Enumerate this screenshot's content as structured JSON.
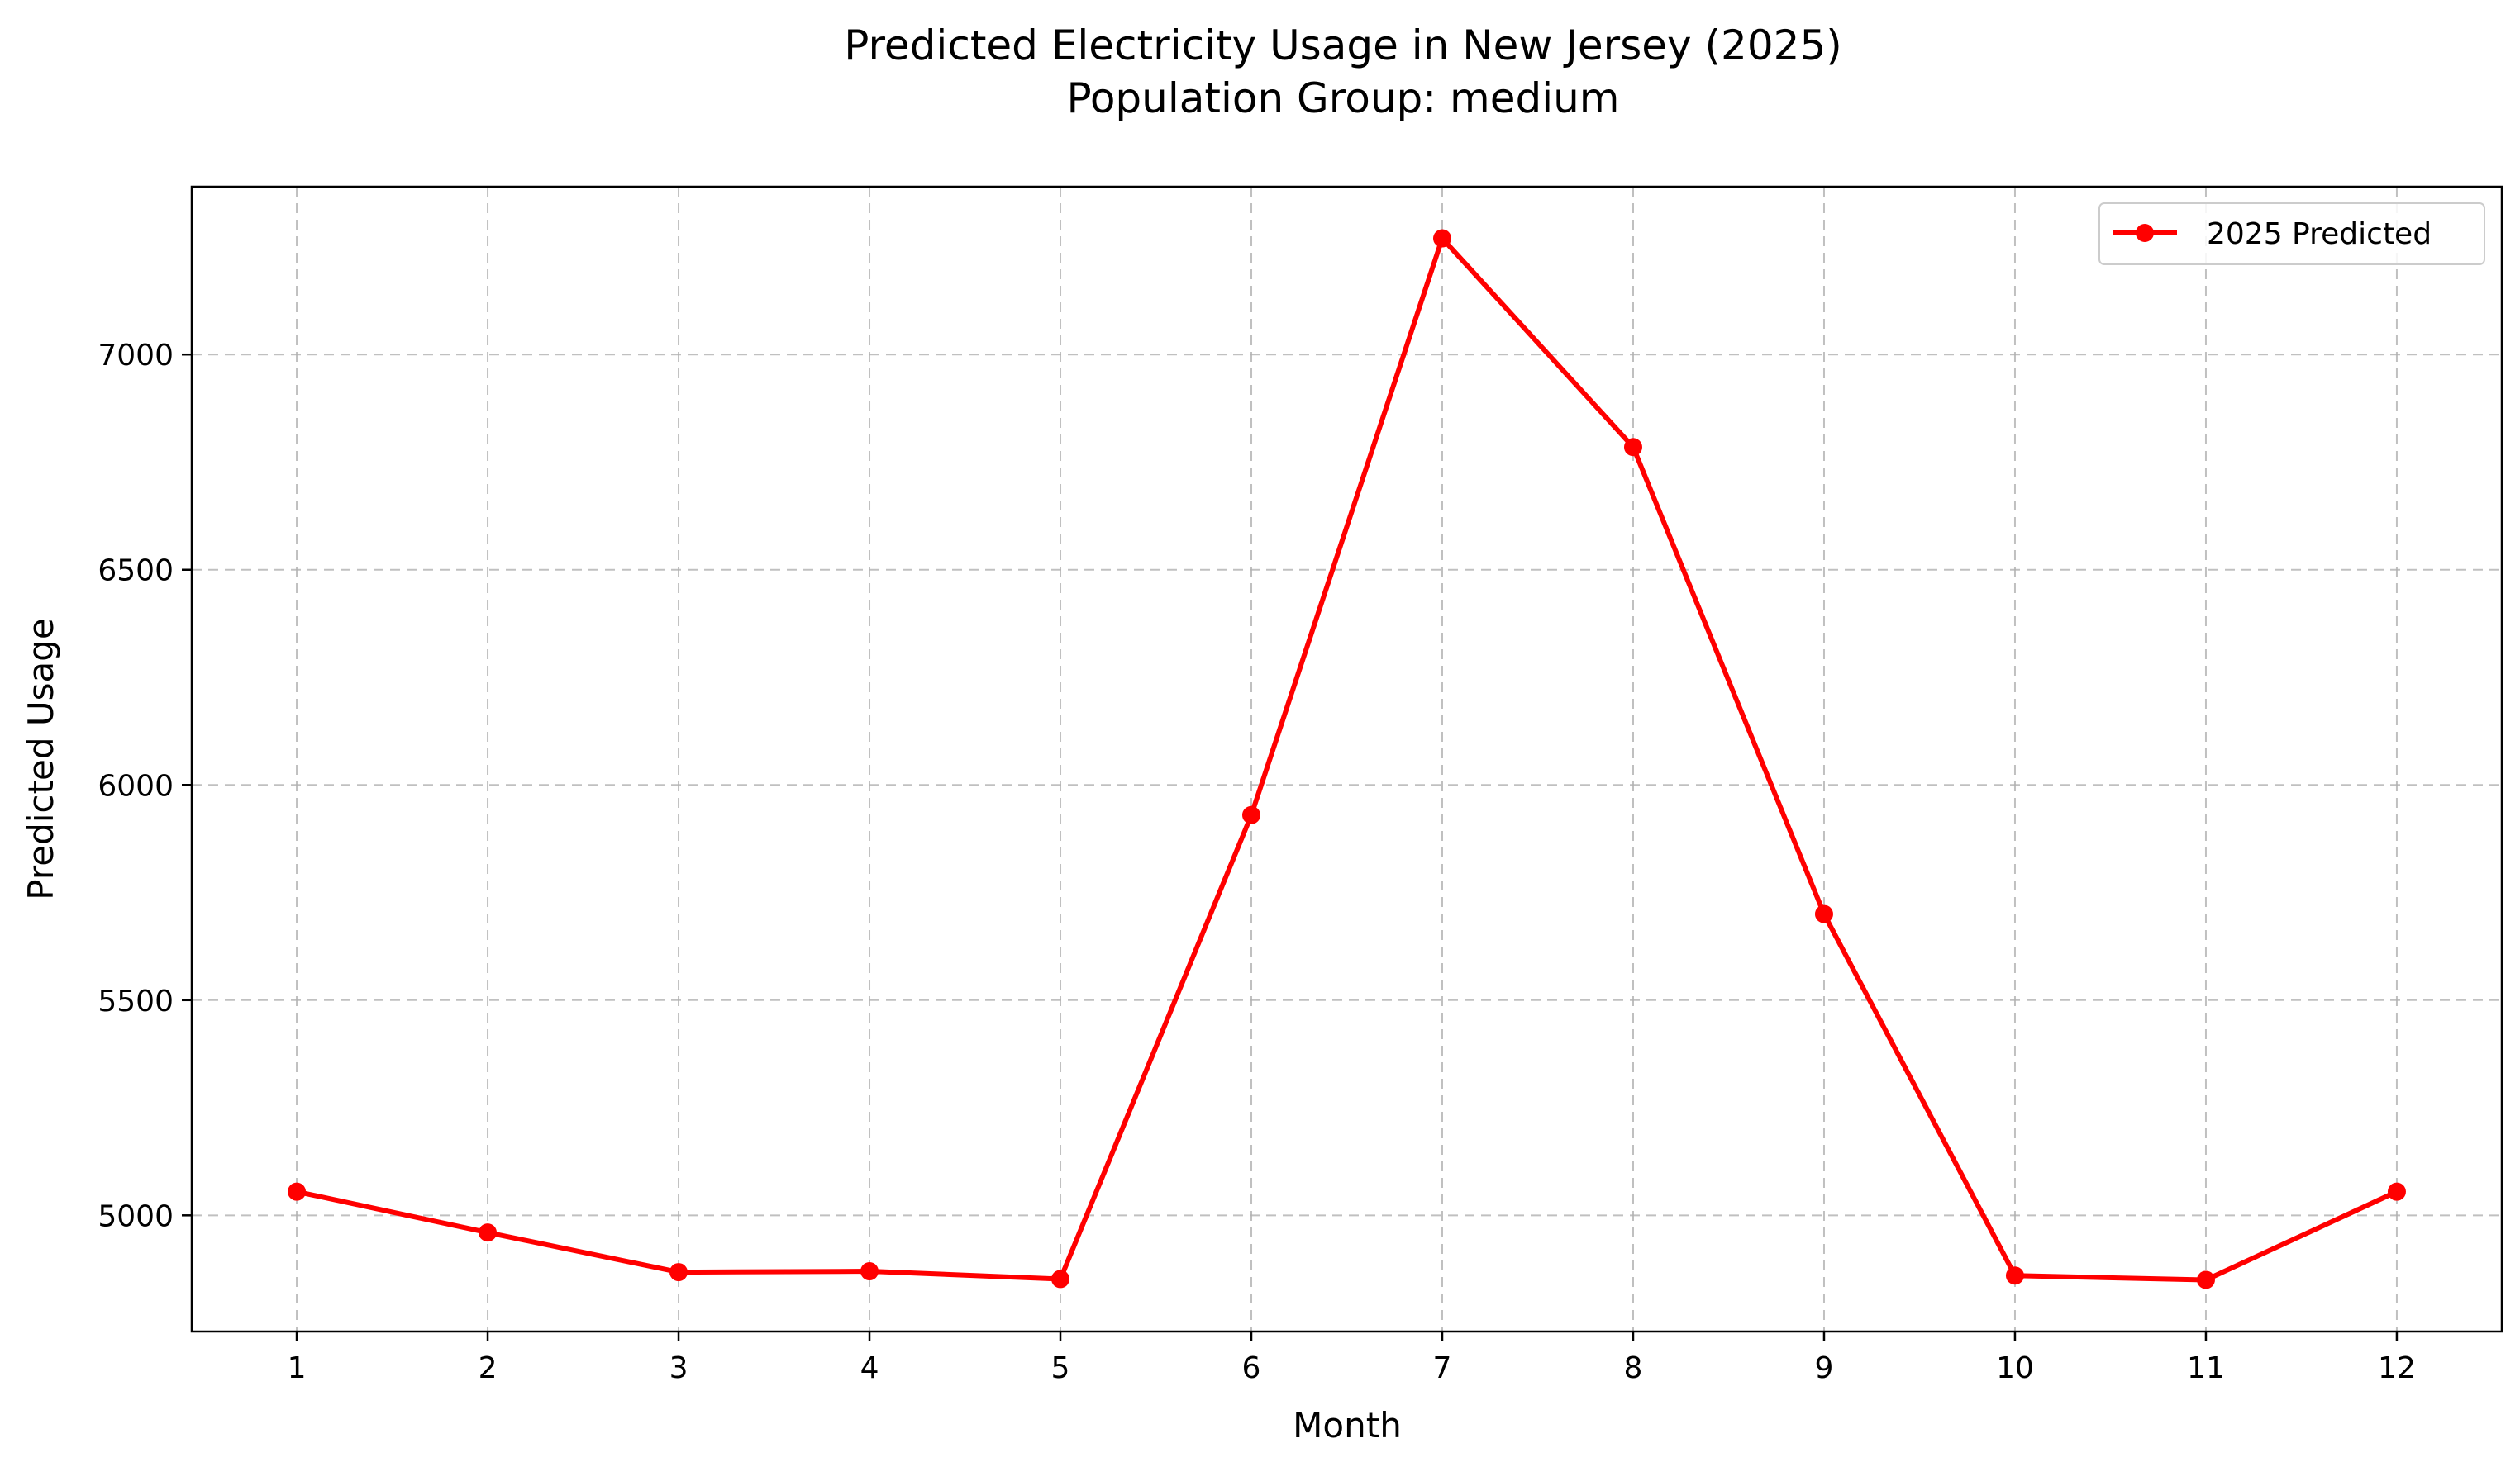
{
  "chart_data": {
    "type": "line",
    "title": "Predicted Electricity Usage in New Jersey (2025)",
    "subtitle": "Population Group: medium",
    "xlabel": "Month",
    "ylabel": "Predicted Usage",
    "x": [
      1,
      2,
      3,
      4,
      5,
      6,
      7,
      8,
      9,
      10,
      11,
      12
    ],
    "xticks": [
      "1",
      "2",
      "3",
      "4",
      "5",
      "6",
      "7",
      "8",
      "9",
      "10",
      "11",
      "12"
    ],
    "xlim": [
      0.45,
      12.55
    ],
    "ylim": [
      4730,
      7390
    ],
    "yticks": [
      5000,
      5500,
      6000,
      6500,
      7000
    ],
    "grid": true,
    "legend": "top-right",
    "series": [
      {
        "name": "2025 Predicted",
        "color": "#ff0000",
        "marker": "circle",
        "values": [
          5055,
          4960,
          4868,
          4870,
          4852,
          5930,
          7270,
          6785,
          5700,
          4860,
          4850,
          5055
        ]
      }
    ]
  }
}
